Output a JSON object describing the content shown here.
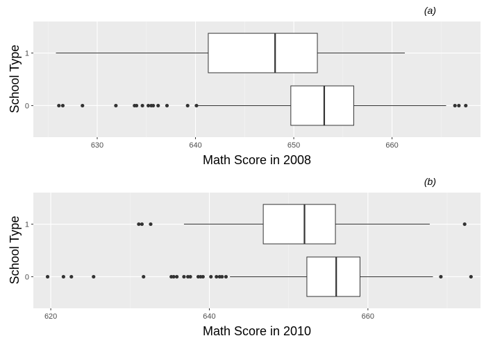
{
  "chart_data": [
    {
      "type": "boxplot",
      "tag": "(a)",
      "xlabel": "Math Score in 2008",
      "ylabel": "School Type",
      "xlim": [
        623.5,
        669
      ],
      "x_ticks": [
        630,
        640,
        650,
        660
      ],
      "categories": [
        "0",
        "1"
      ],
      "boxes": [
        {
          "category": "1",
          "whisker_low": 625.8,
          "q1": 641.3,
          "median": 648.1,
          "q3": 652.4,
          "whisker_high": 661.3,
          "outliers": []
        },
        {
          "category": "0",
          "whisker_low": 640.2,
          "q1": 649.7,
          "median": 653.1,
          "q3": 656.1,
          "whisker_high": 665.5,
          "outliers": [
            626.1,
            626.5,
            628.5,
            631.9,
            633.8,
            634.0,
            634.6,
            635.2,
            635.5,
            635.7,
            636.2,
            637.1,
            639.2,
            640.1,
            666.4,
            666.8,
            667.5
          ]
        }
      ],
      "grid": true
    },
    {
      "type": "boxplot",
      "tag": "(b)",
      "xlabel": "Math Score in 2010",
      "ylabel": "School Type",
      "xlim": [
        617.8,
        674.2
      ],
      "x_ticks": [
        620,
        640,
        660
      ],
      "categories": [
        "0",
        "1"
      ],
      "boxes": [
        {
          "category": "1",
          "whisker_low": 636.8,
          "q1": 646.8,
          "median": 652.0,
          "q3": 655.9,
          "whisker_high": 667.8,
          "outliers": [
            631.1,
            631.5,
            632.6,
            672.2
          ]
        },
        {
          "category": "0",
          "whisker_low": 642.6,
          "q1": 652.3,
          "median": 656.0,
          "q3": 659.0,
          "whisker_high": 668.2,
          "outliers": [
            619.6,
            621.6,
            622.6,
            625.4,
            631.7,
            635.2,
            635.5,
            635.9,
            636.8,
            637.3,
            637.6,
            638.6,
            638.9,
            639.2,
            640.2,
            640.9,
            641.3,
            641.6,
            642.1,
            669.2,
            673.0
          ]
        }
      ],
      "grid": true
    }
  ]
}
